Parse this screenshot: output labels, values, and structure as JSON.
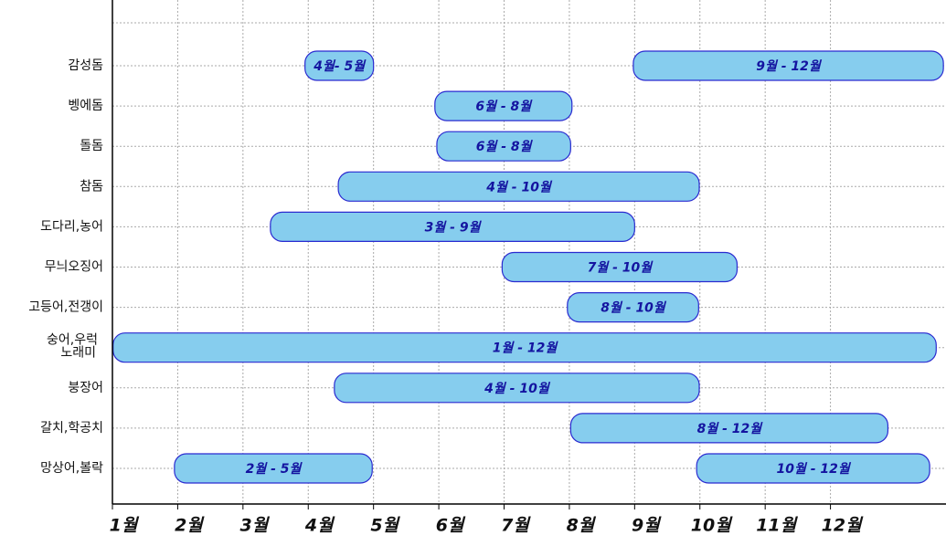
{
  "chart_data": {
    "type": "gantt",
    "rows": [
      {
        "name": "감성돔",
        "bars": [
          {
            "start": 3.95,
            "end": 5.0,
            "label": "4월- 5월"
          },
          {
            "start": 8.98,
            "end": 13.73,
            "label": "9월 - 12월"
          }
        ]
      },
      {
        "name": "벵에돔",
        "bars": [
          {
            "start": 5.94,
            "end": 8.04,
            "label": "6월 - 8월"
          }
        ]
      },
      {
        "name": "돌돔",
        "bars": [
          {
            "start": 5.97,
            "end": 8.02,
            "label": "6월 - 8월"
          }
        ]
      },
      {
        "name": "참돔",
        "bars": [
          {
            "start": 4.46,
            "end": 9.99,
            "label": "4월 - 10월"
          }
        ]
      },
      {
        "name": "도다리,농어",
        "bars": [
          {
            "start": 3.42,
            "end": 9.0,
            "label": "3월 - 9월"
          }
        ]
      },
      {
        "name": "무늬오징어",
        "bars": [
          {
            "start": 6.97,
            "end": 10.57,
            "label": "7월 - 10월"
          }
        ]
      },
      {
        "name": "고등어,전갱이",
        "bars": [
          {
            "start": 7.97,
            "end": 9.98,
            "label": "8월 - 10월"
          }
        ]
      },
      {
        "name": [
          "숭어,우럭",
          "노래미"
        ],
        "bars": [
          {
            "start": 1.01,
            "end": 13.62,
            "label": "1월 - 12월"
          }
        ]
      },
      {
        "name": "붕장어",
        "bars": [
          {
            "start": 4.4,
            "end": 9.99,
            "label": "4월 - 10월"
          }
        ]
      },
      {
        "name": "갈치,학공치",
        "bars": [
          {
            "start": 8.02,
            "end": 12.88,
            "label": "8월 - 12월"
          }
        ]
      },
      {
        "name": "망상어,볼락",
        "bars": [
          {
            "start": 1.95,
            "end": 4.98,
            "label": "2월 - 5월"
          },
          {
            "start": 9.95,
            "end": 13.52,
            "label": "10월 - 12월"
          }
        ]
      }
    ],
    "xlim": [
      1,
      13.77
    ],
    "xticks": [
      {
        "value": 1,
        "label": "1월"
      },
      {
        "value": 2,
        "label": "2월"
      },
      {
        "value": 3,
        "label": "3월"
      },
      {
        "value": 4,
        "label": "4월"
      },
      {
        "value": 5,
        "label": "5월"
      },
      {
        "value": 6,
        "label": "6월"
      },
      {
        "value": 7,
        "label": "7월"
      },
      {
        "value": 8,
        "label": "8월"
      },
      {
        "value": 9,
        "label": "9월"
      },
      {
        "value": 10,
        "label": "10월"
      },
      {
        "value": 11,
        "label": "11월"
      },
      {
        "value": 12,
        "label": "12월"
      }
    ],
    "grid": true,
    "color": "#86cdee",
    "edge_color": "#2a2ad0",
    "label_color": "#1414a0"
  }
}
